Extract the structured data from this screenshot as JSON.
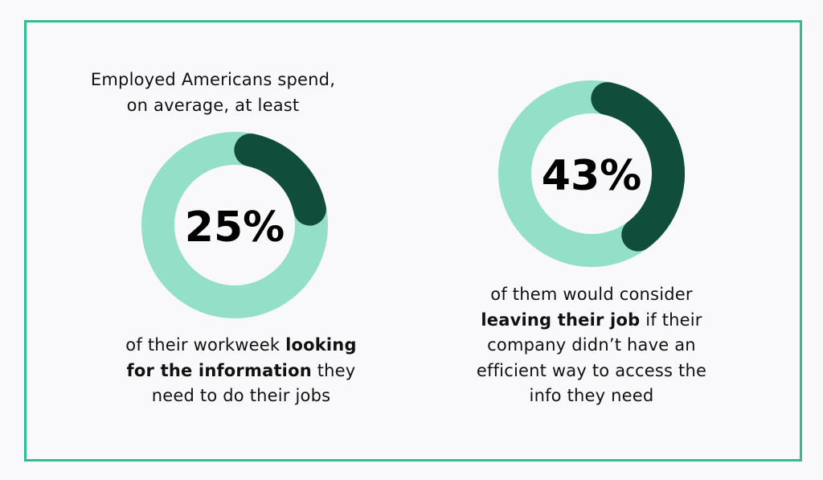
{
  "colors": {
    "ring": "#94dfc8",
    "accent": "#104d3b",
    "border": "#2cbf94"
  },
  "left": {
    "intro_line1": "Employed Americans spend,",
    "intro_line2": "on average, at least",
    "value_label": "25%",
    "line1_a": "of their workweek ",
    "line1_b": "looking",
    "line2_a": "for the information",
    "line2_b": " they",
    "line3": "need to do their jobs"
  },
  "right": {
    "value_label": "43%",
    "line1": "of them would consider",
    "line2_a": "leaving their job",
    "line2_b": " if their",
    "line3": "company didn’t have an",
    "line4": "efficient way to access the",
    "line5": "info they need"
  },
  "chart_data": [
    {
      "type": "pie",
      "style": "donut",
      "values": [
        25,
        75
      ],
      "label": "25%"
    },
    {
      "type": "pie",
      "style": "donut",
      "values": [
        43,
        57
      ],
      "label": "43%"
    }
  ]
}
